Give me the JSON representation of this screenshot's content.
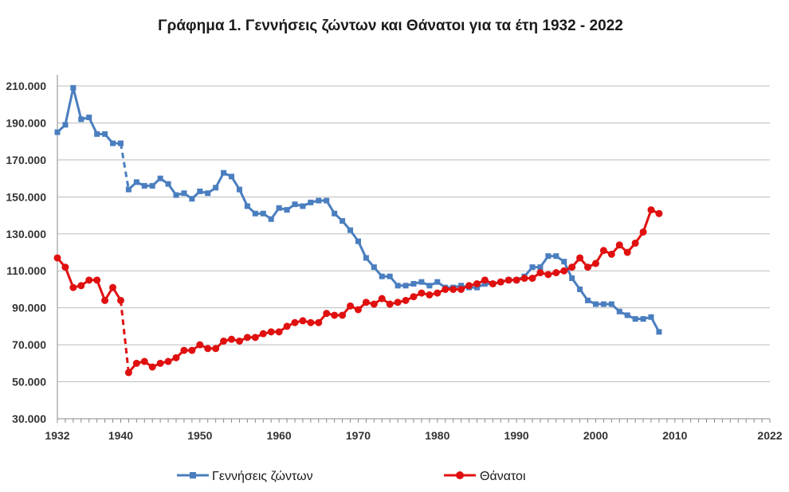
{
  "chart_data": {
    "type": "line",
    "title": "Γράφημα 1.  Γεννήσεις ζώντων και Θάνατοι για τα έτη 1932 - 2022",
    "xlabel": "",
    "ylabel": "",
    "xlim": [
      1932,
      2022
    ],
    "ylim": [
      30000,
      210000
    ],
    "x_ticks": [
      1932,
      1940,
      1950,
      1960,
      1970,
      1980,
      1990,
      2000,
      2010,
      2022
    ],
    "x_tick_labels": [
      "1932",
      "1940",
      "1950",
      "1960",
      "1970",
      "1980",
      "1990",
      "2000",
      "2010",
      "2022"
    ],
    "y_ticks": [
      30000,
      50000,
      70000,
      90000,
      110000,
      130000,
      150000,
      170000,
      190000,
      210000
    ],
    "y_tick_labels": [
      "30.000",
      "50.000",
      "70.000",
      "90.000",
      "110.000",
      "130.000",
      "150.000",
      "170.000",
      "190.000",
      "210.000"
    ],
    "grid": true,
    "legend_position": "bottom",
    "gap": {
      "from": 1940,
      "to": 1941,
      "style": "dashed"
    },
    "series": [
      {
        "name": "Γεννήσεις ζώντων",
        "color": "#4a7ebf",
        "marker": "square",
        "points": [
          [
            1932,
            185000
          ],
          [
            1933,
            189000
          ],
          [
            1934,
            209000
          ],
          [
            1935,
            192000
          ],
          [
            1936,
            193000
          ],
          [
            1937,
            184000
          ],
          [
            1938,
            184000
          ],
          [
            1939,
            179000
          ],
          [
            1940,
            179000
          ],
          [
            1941,
            154000
          ],
          [
            1942,
            158000
          ],
          [
            1943,
            156000
          ],
          [
            1944,
            156000
          ],
          [
            1945,
            160000
          ],
          [
            1946,
            157000
          ],
          [
            1947,
            151000
          ],
          [
            1948,
            152000
          ],
          [
            1949,
            149000
          ],
          [
            1950,
            153000
          ],
          [
            1951,
            152000
          ],
          [
            1952,
            155000
          ],
          [
            1953,
            163000
          ],
          [
            1954,
            161000
          ],
          [
            1955,
            154000
          ],
          [
            1956,
            145000
          ],
          [
            1957,
            141000
          ],
          [
            1958,
            141000
          ],
          [
            1959,
            138000
          ],
          [
            1960,
            144000
          ],
          [
            1961,
            143000
          ],
          [
            1962,
            146000
          ],
          [
            1963,
            145000
          ],
          [
            1964,
            147000
          ],
          [
            1965,
            148000
          ],
          [
            1966,
            148000
          ],
          [
            1967,
            141000
          ],
          [
            1968,
            137000
          ],
          [
            1969,
            132000
          ],
          [
            1970,
            126000
          ],
          [
            1971,
            117000
          ],
          [
            1972,
            112000
          ],
          [
            1973,
            107000
          ],
          [
            1974,
            107000
          ],
          [
            1975,
            102000
          ],
          [
            1976,
            102000
          ],
          [
            1977,
            103000
          ],
          [
            1978,
            104000
          ],
          [
            1979,
            102000
          ],
          [
            1980,
            104000
          ],
          [
            1981,
            101000
          ],
          [
            1982,
            101000
          ],
          [
            1983,
            102000
          ],
          [
            1984,
            101000
          ],
          [
            1985,
            101000
          ],
          [
            1986,
            103000
          ],
          [
            1987,
            103000
          ],
          [
            1988,
            104000
          ],
          [
            1989,
            105000
          ],
          [
            1990,
            105000
          ],
          [
            1991,
            107000
          ],
          [
            1992,
            112000
          ],
          [
            1993,
            112000
          ],
          [
            1994,
            118000
          ],
          [
            1995,
            118000
          ],
          [
            1996,
            115000
          ],
          [
            1997,
            106000
          ],
          [
            1998,
            100000
          ],
          [
            1999,
            94000
          ],
          [
            2000,
            92000
          ],
          [
            2001,
            92000
          ],
          [
            2002,
            92000
          ],
          [
            2003,
            88000
          ],
          [
            2004,
            86000
          ],
          [
            2005,
            84000
          ],
          [
            2006,
            84000
          ],
          [
            2007,
            85000
          ],
          [
            2008,
            77000
          ]
        ]
      },
      {
        "name": "Θάνατοι",
        "color": "#e01010",
        "marker": "circle",
        "points": [
          [
            1932,
            117000
          ],
          [
            1933,
            112000
          ],
          [
            1934,
            101000
          ],
          [
            1935,
            102000
          ],
          [
            1936,
            105000
          ],
          [
            1937,
            105000
          ],
          [
            1938,
            94000
          ],
          [
            1939,
            101000
          ],
          [
            1940,
            94000
          ],
          [
            1941,
            55000
          ],
          [
            1942,
            60000
          ],
          [
            1943,
            61000
          ],
          [
            1944,
            58000
          ],
          [
            1945,
            60000
          ],
          [
            1946,
            61000
          ],
          [
            1947,
            63000
          ],
          [
            1948,
            67000
          ],
          [
            1949,
            67000
          ],
          [
            1950,
            70000
          ],
          [
            1951,
            68000
          ],
          [
            1952,
            68000
          ],
          [
            1953,
            72000
          ],
          [
            1954,
            73000
          ],
          [
            1955,
            72000
          ],
          [
            1956,
            74000
          ],
          [
            1957,
            74000
          ],
          [
            1958,
            76000
          ],
          [
            1959,
            77000
          ],
          [
            1960,
            77000
          ],
          [
            1961,
            80000
          ],
          [
            1962,
            82000
          ],
          [
            1963,
            83000
          ],
          [
            1964,
            82000
          ],
          [
            1965,
            82000
          ],
          [
            1966,
            87000
          ],
          [
            1967,
            86000
          ],
          [
            1968,
            86000
          ],
          [
            1969,
            91000
          ],
          [
            1970,
            89000
          ],
          [
            1971,
            93000
          ],
          [
            1972,
            92000
          ],
          [
            1973,
            95000
          ],
          [
            1974,
            92000
          ],
          [
            1975,
            93000
          ],
          [
            1976,
            94000
          ],
          [
            1977,
            96000
          ],
          [
            1978,
            98000
          ],
          [
            1979,
            97000
          ],
          [
            1980,
            98000
          ],
          [
            1981,
            100000
          ],
          [
            1982,
            100000
          ],
          [
            1983,
            100000
          ],
          [
            1984,
            102000
          ],
          [
            1985,
            103000
          ],
          [
            1986,
            105000
          ],
          [
            1987,
            103000
          ],
          [
            1988,
            104000
          ],
          [
            1989,
            105000
          ],
          [
            1990,
            105000
          ],
          [
            1991,
            106000
          ],
          [
            1992,
            106000
          ],
          [
            1993,
            109000
          ],
          [
            1994,
            108000
          ],
          [
            1995,
            109000
          ],
          [
            1996,
            110000
          ],
          [
            1997,
            112000
          ],
          [
            1998,
            117000
          ],
          [
            1999,
            112000
          ],
          [
            2000,
            114000
          ],
          [
            2001,
            121000
          ],
          [
            2002,
            119000
          ],
          [
            2003,
            124000
          ],
          [
            2004,
            120000
          ],
          [
            2005,
            125000
          ],
          [
            2006,
            131000
          ],
          [
            2007,
            143000
          ],
          [
            2008,
            141000
          ]
        ]
      }
    ]
  }
}
